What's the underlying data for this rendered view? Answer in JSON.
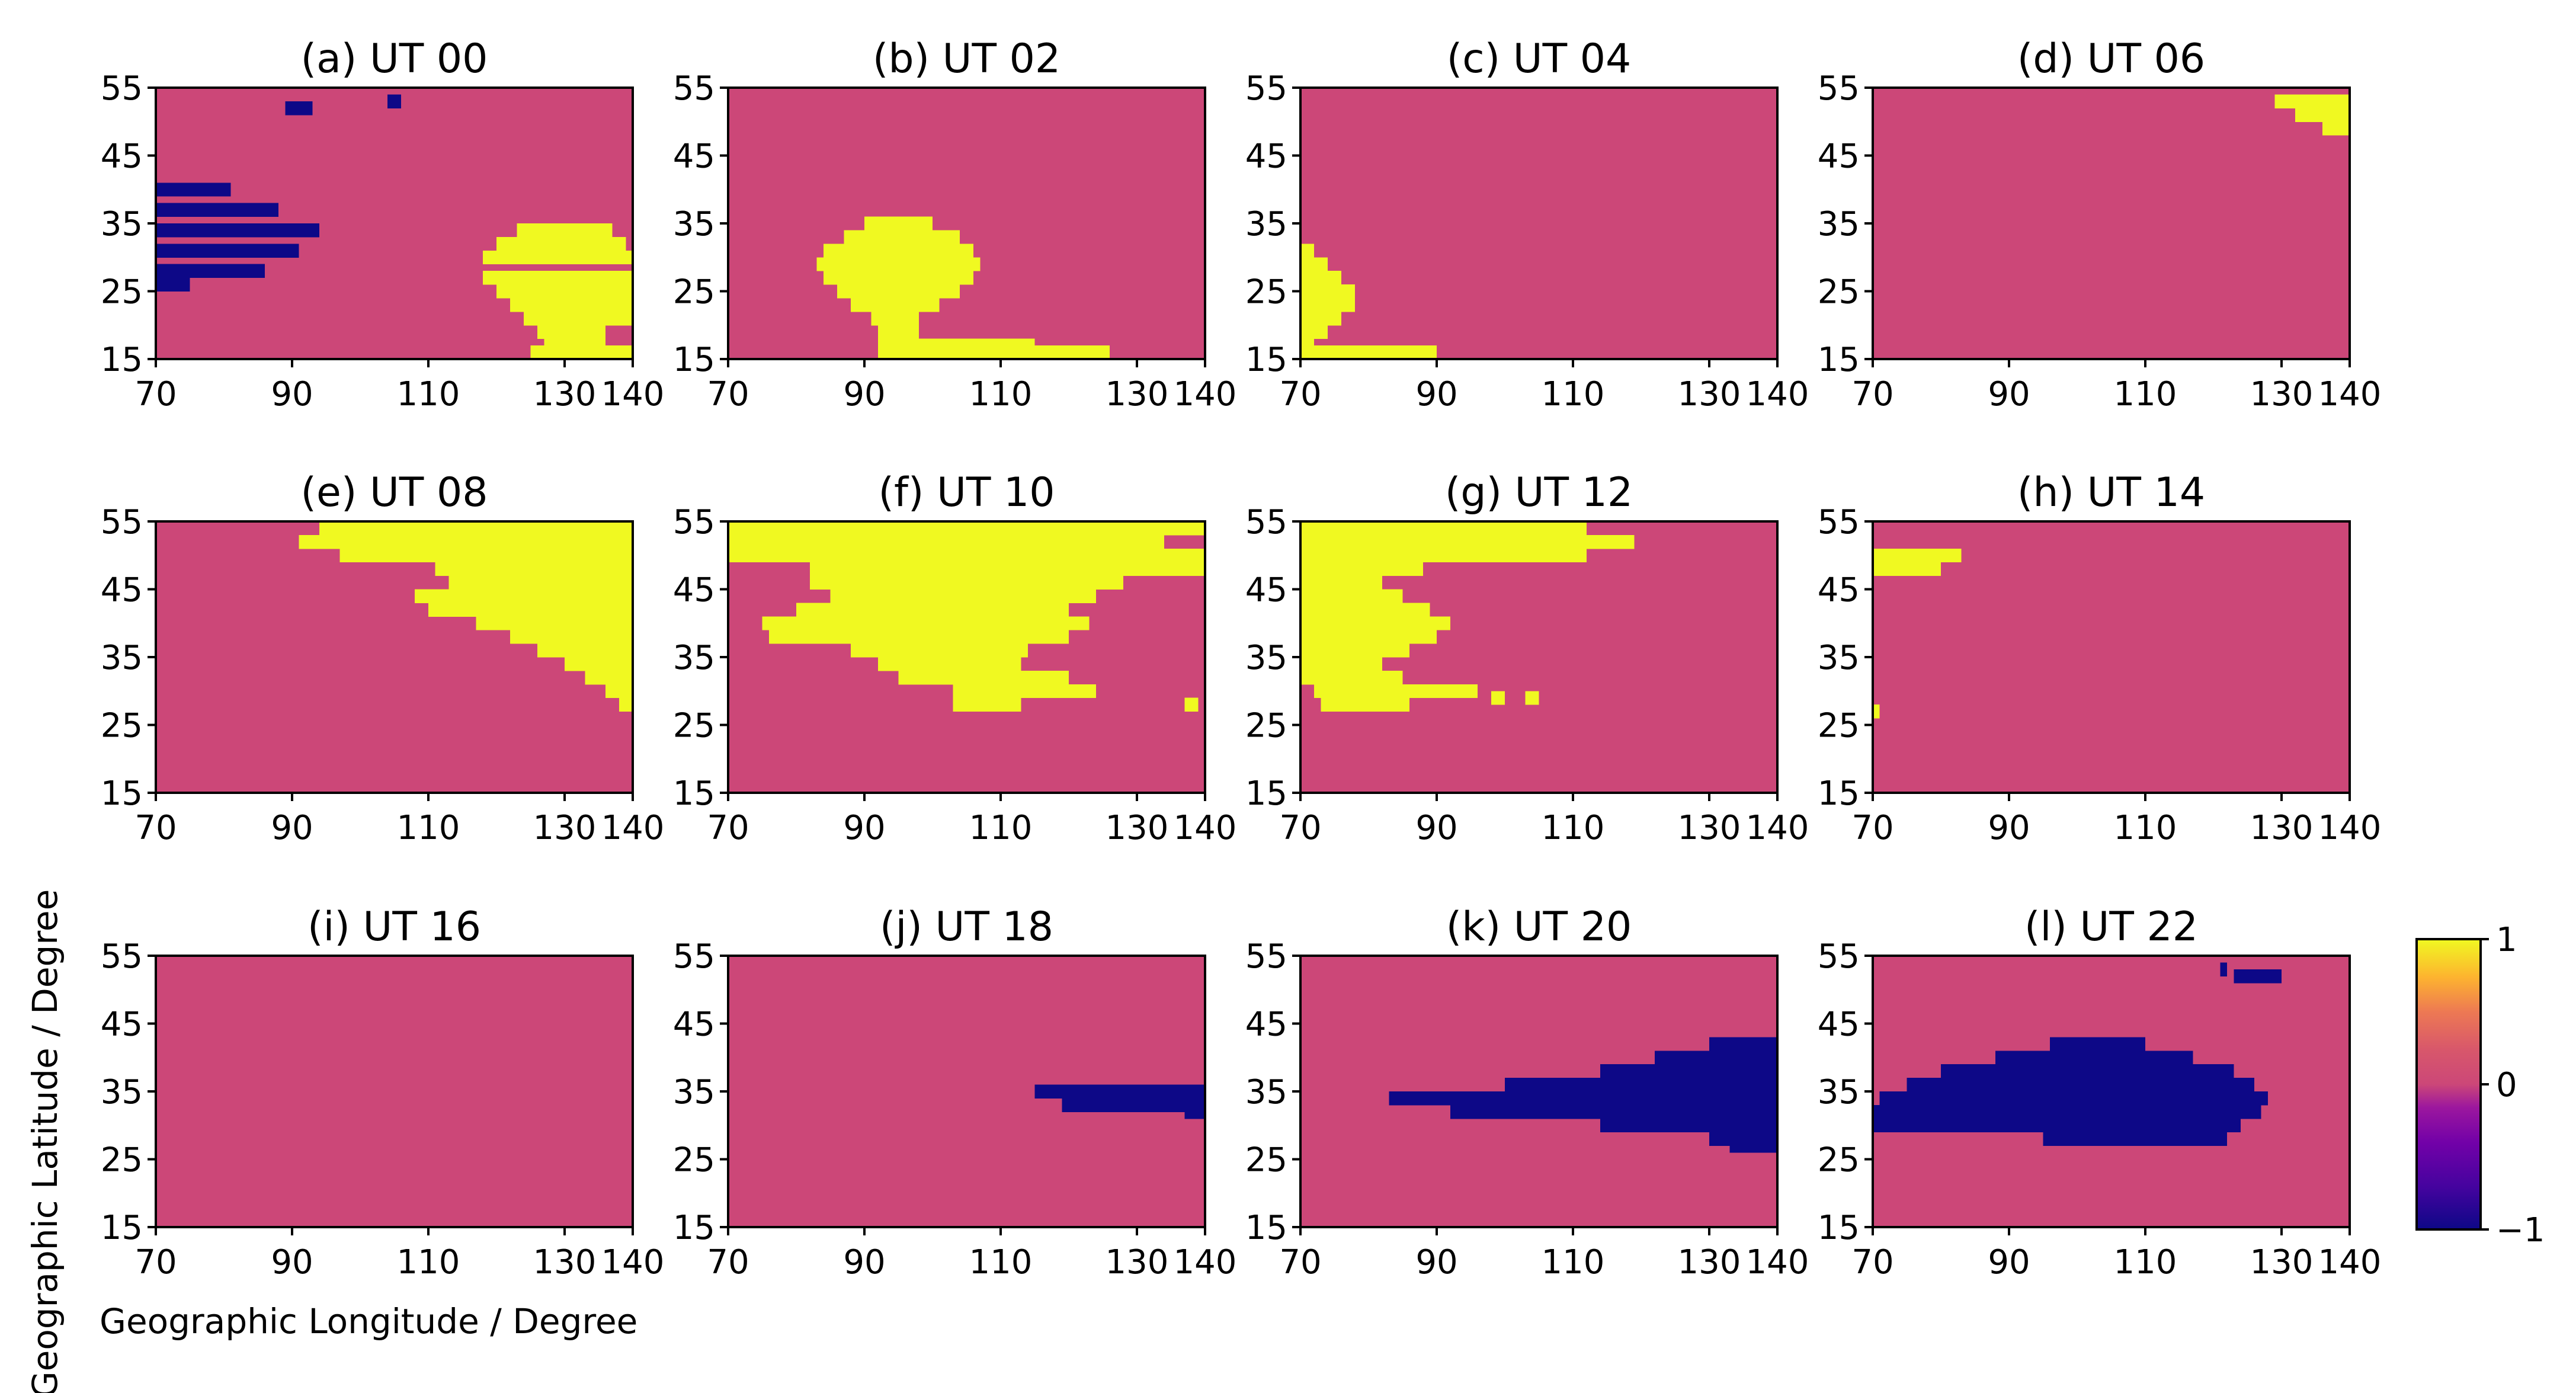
{
  "chart_data": {
    "type": "heatmap",
    "xlabel": "Geographic Longitude / Degree",
    "ylabel": "Geographic Latitude / Degree",
    "xlim": [
      70,
      140
    ],
    "ylim": [
      15,
      55
    ],
    "xticks": [
      70,
      90,
      110,
      130,
      140
    ],
    "yticks": [
      15,
      25,
      35,
      45,
      55
    ],
    "value_range": [
      -1,
      1
    ],
    "colorbar": {
      "ticks": [
        1,
        0,
        -1
      ],
      "tick_labels": [
        "1",
        "0",
        "−1"
      ],
      "colormap": "plasma",
      "colors": {
        "neg": "#0d0887",
        "zero": "#cc4778",
        "pos": "#f0f921"
      }
    },
    "background_value": 0,
    "panels": [
      {
        "title": "(a) UT 00",
        "regions": [
          {
            "value": -1,
            "lat_lon_extent": [
              [
                41,
                70,
                81
              ],
              [
                38,
                70,
                88
              ],
              [
                35,
                70,
                94
              ],
              [
                32,
                70,
                91
              ],
              [
                29,
                70,
                86
              ],
              [
                27,
                70,
                75
              ]
            ]
          },
          {
            "value": -1,
            "lat_lon_extent": [
              [
                53,
                89,
                93
              ]
            ]
          },
          {
            "value": -1,
            "lat_lon_extent": [
              [
                54,
                104,
                106
              ]
            ]
          },
          {
            "value": 1,
            "lat_lon_extent": [
              [
                35,
                123,
                137
              ],
              [
                33,
                120,
                139
              ],
              [
                31,
                118,
                140
              ],
              [
                28,
                118,
                140
              ],
              [
                26,
                120,
                140
              ],
              [
                24,
                122,
                140
              ],
              [
                22,
                124,
                140
              ],
              [
                20,
                126,
                136
              ],
              [
                18,
                127,
                136
              ],
              [
                17,
                125,
                140
              ],
              [
                15,
                123,
                140
              ]
            ]
          }
        ]
      },
      {
        "title": "(b) UT 02",
        "regions": [
          {
            "value": 1,
            "lat_lon_extent": [
              [
                36,
                90,
                100
              ],
              [
                34,
                87,
                104
              ],
              [
                32,
                84,
                106
              ],
              [
                30,
                83,
                107
              ],
              [
                28,
                84,
                106
              ],
              [
                26,
                86,
                104
              ],
              [
                24,
                88,
                101
              ],
              [
                22,
                91,
                98
              ],
              [
                20,
                92,
                98
              ],
              [
                18,
                92,
                115
              ],
              [
                17,
                92,
                126
              ],
              [
                15,
                91,
                138
              ]
            ]
          }
        ]
      },
      {
        "title": "(c) UT 04",
        "regions": [
          {
            "value": 1,
            "lat_lon_extent": [
              [
                32,
                70,
                72
              ],
              [
                30,
                70,
                74
              ],
              [
                28,
                70,
                76
              ],
              [
                26,
                70,
                78
              ],
              [
                24,
                70,
                78
              ],
              [
                22,
                70,
                76
              ],
              [
                20,
                70,
                74
              ],
              [
                18,
                70,
                72
              ],
              [
                17,
                70,
                90
              ],
              [
                15,
                70,
                107
              ]
            ]
          }
        ]
      },
      {
        "title": "(d) UT 06",
        "regions": [
          {
            "value": 1,
            "lat_lon_extent": [
              [
                54,
                129,
                140
              ],
              [
                52,
                132,
                140
              ],
              [
                50,
                136,
                140
              ]
            ]
          }
        ]
      },
      {
        "title": "(e) UT 08",
        "regions": [
          {
            "value": 1,
            "lat_lon_extent": [
              [
                55,
                94,
                140
              ],
              [
                53,
                91,
                140
              ],
              [
                51,
                97,
                140
              ],
              [
                49,
                111,
                140
              ],
              [
                47,
                113,
                140
              ],
              [
                45,
                108,
                140
              ],
              [
                43,
                110,
                140
              ],
              [
                41,
                117,
                140
              ],
              [
                39,
                122,
                140
              ],
              [
                37,
                126,
                140
              ],
              [
                35,
                130,
                140
              ],
              [
                33,
                133,
                140
              ],
              [
                31,
                136,
                140
              ],
              [
                29,
                138,
                140
              ]
            ]
          }
        ]
      },
      {
        "title": "(f) UT 10",
        "regions": [
          {
            "value": 1,
            "lat_lon_extent": [
              [
                55,
                70,
                140
              ],
              [
                53,
                70,
                134
              ],
              [
                51,
                70,
                140
              ],
              [
                49,
                82,
                140
              ],
              [
                47,
                82,
                128
              ],
              [
                45,
                85,
                124
              ],
              [
                43,
                80,
                120
              ],
              [
                41,
                75,
                123
              ],
              [
                39,
                76,
                120
              ],
              [
                37,
                88,
                114
              ],
              [
                35,
                92,
                113
              ],
              [
                33,
                95,
                120
              ],
              [
                31,
                103,
                124
              ],
              [
                29,
                103,
                113
              ]
            ]
          },
          {
            "value": 1,
            "lat_lon_extent": [
              [
                29,
                137,
                139
              ]
            ]
          }
        ]
      },
      {
        "title": "(g) UT 12",
        "regions": [
          {
            "value": 1,
            "lat_lon_extent": [
              [
                55,
                70,
                112
              ],
              [
                53,
                70,
                119
              ],
              [
                51,
                70,
                112
              ],
              [
                49,
                70,
                88
              ],
              [
                47,
                70,
                82
              ],
              [
                45,
                70,
                85
              ],
              [
                43,
                70,
                89
              ],
              [
                41,
                70,
                92
              ],
              [
                39,
                70,
                90
              ],
              [
                37,
                70,
                86
              ],
              [
                35,
                70,
                82
              ],
              [
                33,
                70,
                85
              ],
              [
                31,
                72,
                96
              ],
              [
                29,
                73,
                86
              ]
            ]
          },
          {
            "value": 1,
            "lat_lon_extent": [
              [
                30,
                98,
                100
              ]
            ]
          },
          {
            "value": 1,
            "lat_lon_extent": [
              [
                30,
                103,
                105
              ]
            ]
          }
        ]
      },
      {
        "title": "(h) UT 14",
        "regions": [
          {
            "value": 1,
            "lat_lon_extent": [
              [
                51,
                70,
                83
              ],
              [
                49,
                70,
                80
              ]
            ]
          },
          {
            "value": 1,
            "lat_lon_extent": [
              [
                28,
                70,
                71
              ]
            ]
          }
        ]
      },
      {
        "title": "(i) UT 16",
        "regions": []
      },
      {
        "title": "(j) UT 18",
        "regions": [
          {
            "value": -1,
            "lat_lon_extent": [
              [
                36,
                115,
                140
              ],
              [
                34,
                119,
                140
              ],
              [
                33,
                137,
                140
              ]
            ]
          }
        ]
      },
      {
        "title": "(k) UT 20",
        "regions": [
          {
            "value": -1,
            "lat_lon_extent": [
              [
                43,
                130,
                140
              ],
              [
                41,
                122,
                140
              ],
              [
                39,
                114,
                140
              ],
              [
                37,
                100,
                140
              ],
              [
                35,
                83,
                140
              ],
              [
                33,
                92,
                140
              ],
              [
                31,
                114,
                140
              ],
              [
                29,
                130,
                140
              ],
              [
                28,
                133,
                140
              ]
            ]
          }
        ]
      },
      {
        "title": "(l) UT 22",
        "regions": [
          {
            "value": -1,
            "lat_lon_extent": [
              [
                43,
                96,
                110
              ],
              [
                41,
                88,
                117
              ],
              [
                39,
                80,
                123
              ],
              [
                37,
                75,
                126
              ],
              [
                35,
                71,
                128
              ],
              [
                33,
                70,
                127
              ],
              [
                31,
                70,
                124
              ],
              [
                29,
                95,
                122
              ]
            ]
          },
          {
            "value": -1,
            "lat_lon_extent": [
              [
                53,
                123,
                130
              ]
            ]
          },
          {
            "value": -1,
            "lat_lon_extent": [
              [
                54,
                121,
                122
              ]
            ]
          }
        ]
      }
    ]
  }
}
